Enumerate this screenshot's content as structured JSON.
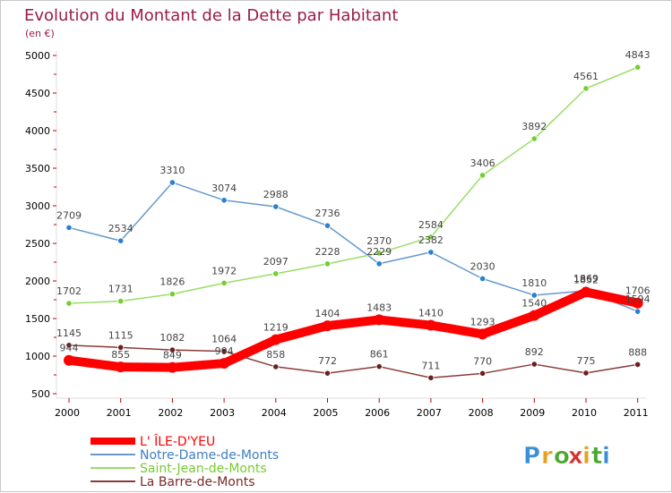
{
  "chart_data": {
    "type": "line",
    "title": "Evolution du Montant de la Dette par Habitant",
    "subtitle": "(en €)",
    "x": [
      "2000",
      "2001",
      "2002",
      "2003",
      "2004",
      "2005",
      "2006",
      "2007",
      "2008",
      "2009",
      "2010",
      "2011"
    ],
    "ylim": [
      500,
      5000
    ],
    "yticks": [
      500,
      1000,
      1500,
      2000,
      2500,
      3000,
      3500,
      4000,
      4500,
      5000
    ],
    "grid": false,
    "legend_position": "bottom-left",
    "series": [
      {
        "name": "L' ÎLE-D'YEU",
        "color": "#ff0000",
        "marker_color": "#ff0000",
        "values": [
          944,
          855,
          849,
          904,
          1219,
          1404,
          1483,
          1410,
          1293,
          1540,
          1852,
          1706
        ]
      },
      {
        "name": "Notre-Dame-de-Monts",
        "color": "#6699cc",
        "marker_color": "#2a7fd0",
        "values": [
          2709,
          2534,
          3310,
          3074,
          2988,
          2736,
          2229,
          2382,
          2030,
          1810,
          1869,
          1594
        ]
      },
      {
        "name": "Saint-Jean-de-Monts",
        "color": "#99dd66",
        "marker_color": "#77cc33",
        "values": [
          1702,
          1731,
          1826,
          1972,
          2097,
          2228,
          2370,
          2584,
          3406,
          3892,
          4561,
          4843
        ]
      },
      {
        "name": "La Barre-de-Monts",
        "color": "#8b3a3a",
        "marker_color": "#6b1f1f",
        "values": [
          1145,
          1115,
          1082,
          1064,
          858,
          772,
          861,
          711,
          770,
          892,
          775,
          888
        ]
      }
    ]
  },
  "brand": {
    "logo_text": "Proxiti"
  },
  "colors": {
    "title": "#9b1b4b",
    "axis_text": "#000000",
    "label_text": "#444444"
  }
}
